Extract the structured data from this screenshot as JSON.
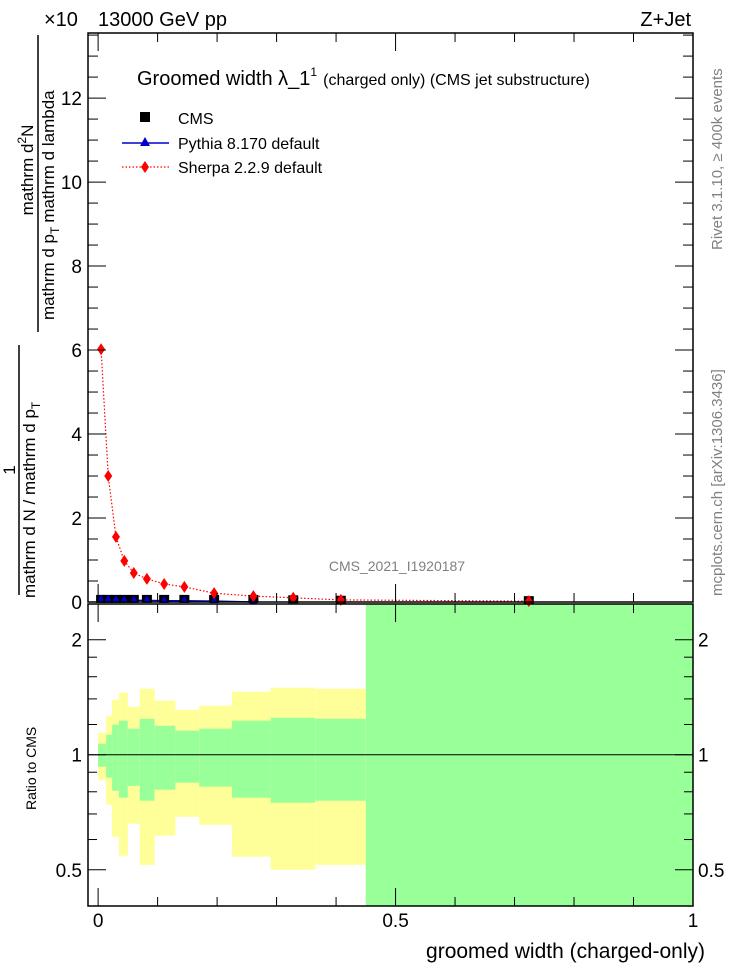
{
  "header": {
    "energy": "13000 GeV pp",
    "multiplier": "×10",
    "process": "Z+Jet"
  },
  "side_texts": {
    "rivet": "Rivet 3.1.10, ≥ 400k events",
    "mcplots": "mcplots.cern.ch [arXiv:1306.3436]"
  },
  "watermark": "CMS_2021_I1920187",
  "colors": {
    "cms": "#000000",
    "pythia": "#0000cc",
    "sherpa": "#ff0000",
    "band_stat": "#99ff99",
    "band_total": "#ffff99"
  },
  "chart_data": [
    {
      "type": "scatter",
      "title": "Groomed width  λ_1",
      "title_sup": "1",
      "title_suffix": "(charged only) (CMS jet substructure)",
      "ylabel_num": "1",
      "ylabel_den": "mathrm d N / mathrm d p",
      "ylabel_den_sub": "T",
      "ylabel2_num": "mathrm d",
      "ylabel2_num_sup": "2",
      "ylabel2_num_end": "N",
      "ylabel2_den": "mathrm d p",
      "ylabel2_den_sub": "T",
      "ylabel2_den_end": "mathrm d lambda",
      "xlim": [
        -0.017,
        1.0
      ],
      "ylim": [
        0,
        13.55
      ],
      "yticks": [
        0,
        2,
        4,
        6,
        8,
        10,
        12
      ],
      "yticklabels": [
        "0",
        "2",
        "4",
        "6",
        "8",
        "10",
        "12"
      ],
      "legend_position": "top-left",
      "x": [
        0.005,
        0.017,
        0.03,
        0.044,
        0.06,
        0.082,
        0.111,
        0.145,
        0.195,
        0.261,
        0.328,
        0.408,
        0.724
      ],
      "series": [
        {
          "name": "CMS",
          "marker": "square",
          "values": [
            0.05,
            0.05,
            0.05,
            0.05,
            0.05,
            0.05,
            0.05,
            0.05,
            0.05,
            0.05,
            0.04,
            0.03,
            0.02
          ]
        },
        {
          "name": "Pythia 8.170 default",
          "marker": "triangle",
          "values": [
            0.06,
            0.05,
            0.05,
            0.04,
            0.04,
            0.04,
            0.03,
            0.03,
            0.02,
            0.0,
            null,
            null,
            null
          ]
        },
        {
          "name": "Sherpa 2.2.9 default",
          "marker": "diamond",
          "values": [
            6.02,
            3.0,
            1.55,
            0.98,
            0.69,
            0.55,
            0.43,
            0.36,
            0.21,
            0.14,
            0.1,
            0.05,
            0.02
          ]
        }
      ]
    },
    {
      "type": "area",
      "ylabel": "Ratio to CMS",
      "xlabel": "groomed width (charged-only)",
      "xlim": [
        -0.017,
        1.0
      ],
      "ylim": [
        0.402,
        2.48
      ],
      "yscale": "log",
      "xticks": [
        0,
        0.5,
        1
      ],
      "xticklabels": [
        "0",
        "0.5",
        "1"
      ],
      "yticks": [
        0.5,
        1,
        2
      ],
      "yticklabels": [
        "0.5",
        "1",
        "2"
      ],
      "bin_edges": [
        0,
        0.0135,
        0.0235,
        0.035,
        0.05,
        0.07,
        0.095,
        0.13,
        0.17,
        0.225,
        0.29,
        0.365,
        0.45,
        1.0
      ],
      "stat_band": {
        "upper": [
          1.069,
          1.128,
          1.198,
          1.228,
          1.17,
          1.242,
          1.191,
          1.156,
          1.17,
          1.228,
          1.25,
          1.242,
          2.48
        ],
        "lower": [
          0.93,
          0.871,
          0.805,
          0.772,
          0.829,
          0.758,
          0.81,
          0.845,
          0.825,
          0.772,
          0.749,
          0.758,
          0.402
        ]
      },
      "total_band": {
        "upper": [
          1.142,
          1.265,
          1.393,
          1.453,
          1.335,
          1.489,
          1.385,
          1.311,
          1.344,
          1.462,
          1.498,
          1.489,
          2.48
        ],
        "lower": [
          0.86,
          0.74,
          0.61,
          0.544,
          0.66,
          0.515,
          0.614,
          0.688,
          0.656,
          0.541,
          0.5,
          0.515,
          0.402
        ]
      }
    }
  ]
}
